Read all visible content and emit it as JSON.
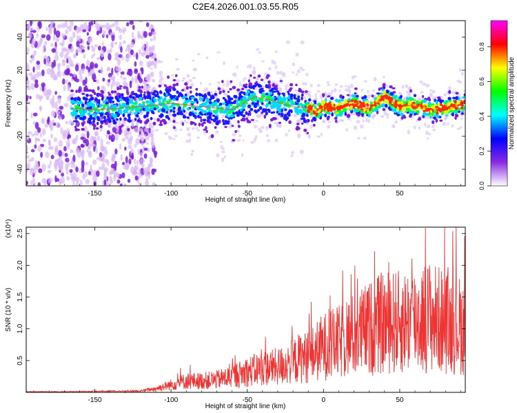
{
  "figure": {
    "title": "C2E4.2026.001.03.55.R05"
  },
  "chart_data": [
    {
      "type": "heatmap",
      "xlabel": "Height of straight line (km)",
      "ylabel": "Frequency (Hz)",
      "xlim": [
        -195,
        93
      ],
      "ylim": [
        -50,
        50
      ],
      "x_ticks": [
        -150,
        -100,
        -50,
        0,
        50
      ],
      "y_ticks": [
        -40,
        -20,
        0,
        20,
        40
      ],
      "colorbar": {
        "label": "Normalized spectral amplitude",
        "range": [
          0,
          0.95
        ],
        "ticks": [
          0.0,
          0.2,
          0.4,
          0.6,
          0.8
        ],
        "colors": [
          "#ffffff",
          "#8a2be2",
          "#0000ff",
          "#00ffff",
          "#00ff00",
          "#ffff00",
          "#ff0000",
          "#ff00ff"
        ]
      },
      "ridge": {
        "x": [
          -165,
          -150,
          -135,
          -120,
          -100,
          -80,
          -60,
          -45,
          -35,
          -20,
          -10,
          -5,
          0,
          10,
          20,
          30,
          40,
          50,
          60,
          70,
          80,
          93
        ],
        "y": [
          -3,
          -4,
          -3,
          -2,
          0,
          -2,
          -4,
          4,
          2,
          -2,
          -3,
          -5,
          -2,
          -3,
          0,
          -3,
          4,
          -2,
          -1,
          -4,
          -3,
          0
        ]
      }
    },
    {
      "type": "line",
      "xlabel": "Height of straight line (km)",
      "ylabel": "SNR (10 * v/v)",
      "y_scale_label": "(x10⁴)",
      "xlim": [
        -195,
        93
      ],
      "ylim": [
        0,
        2.6
      ],
      "x_ticks": [
        -150,
        -100,
        -50,
        0,
        50
      ],
      "y_ticks": [
        0.5,
        1.0,
        1.5,
        2.0,
        2.5
      ],
      "series": [
        {
          "color": "#ee3333",
          "x": [
            -195,
            -170,
            -150,
            -130,
            -120,
            -110,
            -100,
            -90,
            -80,
            -70,
            -60,
            -50,
            -40,
            -30,
            -20,
            -15,
            -10,
            0,
            10,
            20,
            30,
            40,
            50,
            60,
            70,
            80,
            90,
            93
          ],
          "y": [
            0.01,
            0.01,
            0.015,
            0.02,
            0.02,
            0.06,
            0.12,
            0.18,
            0.18,
            0.2,
            0.25,
            0.32,
            0.38,
            0.4,
            0.48,
            0.55,
            0.55,
            0.72,
            0.78,
            0.9,
            1.0,
            1.1,
            1.1,
            1.15,
            1.2,
            1.1,
            1.05,
            1.0
          ]
        }
      ]
    }
  ]
}
